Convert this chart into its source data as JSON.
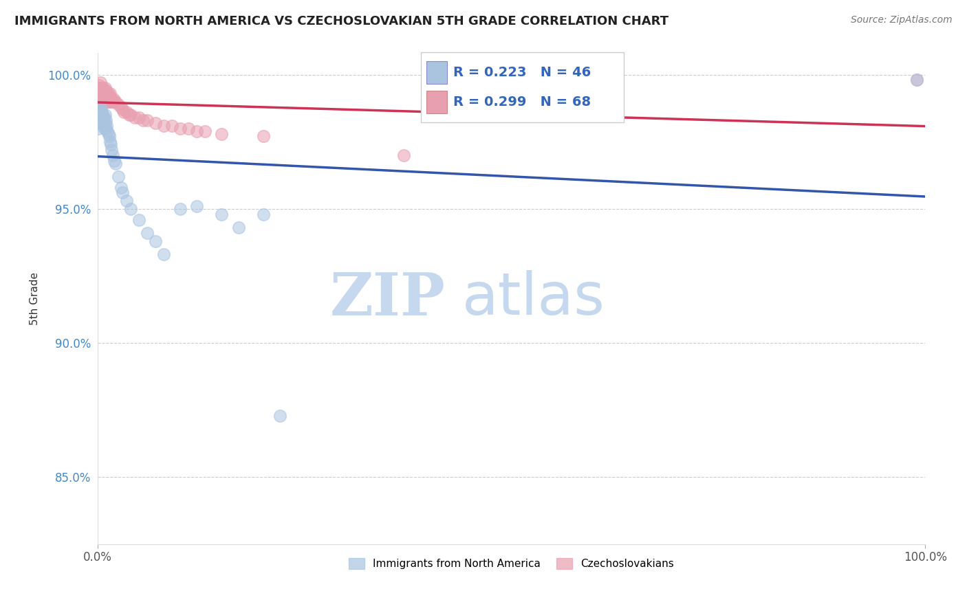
{
  "title": "IMMIGRANTS FROM NORTH AMERICA VS CZECHOSLOVAKIAN 5TH GRADE CORRELATION CHART",
  "source": "Source: ZipAtlas.com",
  "ylabel": "5th Grade",
  "xlabel": "",
  "xlim": [
    0.0,
    1.0
  ],
  "ylim": [
    0.825,
    1.008
  ],
  "yticks": [
    0.85,
    0.9,
    0.95,
    1.0
  ],
  "ytick_labels": [
    "85.0%",
    "90.0%",
    "95.0%",
    "100.0%"
  ],
  "xtick_labels": [
    "0.0%",
    "100.0%"
  ],
  "xticks": [
    0.0,
    1.0
  ],
  "legend_blue_label": "Immigrants from North America",
  "legend_pink_label": "Czechoslovakians",
  "R_blue": 0.223,
  "N_blue": 46,
  "R_pink": 0.299,
  "N_pink": 68,
  "blue_color": "#aac4e0",
  "pink_color": "#e8a0b0",
  "blue_line_color": "#3355aa",
  "pink_line_color": "#cc3355",
  "watermark_zip": "ZIP",
  "watermark_atlas": "atlas",
  "watermark_color_zip": "#c5d8ee",
  "watermark_color_atlas": "#c5d8ee",
  "blue_x": [
    0.001,
    0.002,
    0.002,
    0.003,
    0.003,
    0.003,
    0.004,
    0.004,
    0.005,
    0.005,
    0.006,
    0.006,
    0.007,
    0.007,
    0.008,
    0.008,
    0.009,
    0.009,
    0.01,
    0.01,
    0.011,
    0.012,
    0.013,
    0.014,
    0.015,
    0.016,
    0.017,
    0.018,
    0.02,
    0.022,
    0.025,
    0.028,
    0.03,
    0.035,
    0.04,
    0.05,
    0.06,
    0.07,
    0.08,
    0.1,
    0.12,
    0.15,
    0.17,
    0.2,
    0.22,
    0.99
  ],
  "blue_y": [
    0.98,
    0.984,
    0.986,
    0.982,
    0.985,
    0.988,
    0.984,
    0.987,
    0.983,
    0.986,
    0.982,
    0.985,
    0.981,
    0.984,
    0.98,
    0.984,
    0.982,
    0.985,
    0.98,
    0.983,
    0.981,
    0.979,
    0.978,
    0.977,
    0.975,
    0.974,
    0.972,
    0.97,
    0.968,
    0.967,
    0.962,
    0.958,
    0.956,
    0.953,
    0.95,
    0.946,
    0.941,
    0.938,
    0.933,
    0.95,
    0.951,
    0.948,
    0.943,
    0.948,
    0.873,
    0.998
  ],
  "pink_x": [
    0.001,
    0.001,
    0.002,
    0.002,
    0.002,
    0.003,
    0.003,
    0.003,
    0.003,
    0.004,
    0.004,
    0.004,
    0.005,
    0.005,
    0.005,
    0.006,
    0.006,
    0.006,
    0.007,
    0.007,
    0.007,
    0.008,
    0.008,
    0.008,
    0.009,
    0.009,
    0.009,
    0.01,
    0.01,
    0.01,
    0.011,
    0.011,
    0.012,
    0.012,
    0.013,
    0.013,
    0.014,
    0.014,
    0.015,
    0.015,
    0.016,
    0.017,
    0.018,
    0.019,
    0.02,
    0.022,
    0.025,
    0.028,
    0.03,
    0.032,
    0.035,
    0.038,
    0.04,
    0.045,
    0.05,
    0.055,
    0.06,
    0.07,
    0.08,
    0.09,
    0.1,
    0.11,
    0.12,
    0.13,
    0.15,
    0.2,
    0.37,
    0.99
  ],
  "pink_y": [
    0.993,
    0.995,
    0.992,
    0.994,
    0.996,
    0.991,
    0.993,
    0.995,
    0.997,
    0.99,
    0.992,
    0.994,
    0.991,
    0.993,
    0.995,
    0.99,
    0.992,
    0.994,
    0.991,
    0.993,
    0.995,
    0.99,
    0.992,
    0.994,
    0.991,
    0.993,
    0.995,
    0.99,
    0.992,
    0.994,
    0.991,
    0.993,
    0.99,
    0.992,
    0.991,
    0.993,
    0.99,
    0.992,
    0.991,
    0.993,
    0.99,
    0.991,
    0.99,
    0.991,
    0.99,
    0.99,
    0.989,
    0.988,
    0.987,
    0.986,
    0.986,
    0.985,
    0.985,
    0.984,
    0.984,
    0.983,
    0.983,
    0.982,
    0.981,
    0.981,
    0.98,
    0.98,
    0.979,
    0.979,
    0.978,
    0.977,
    0.97,
    0.998
  ]
}
